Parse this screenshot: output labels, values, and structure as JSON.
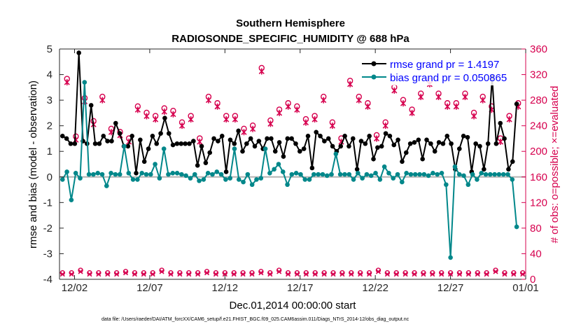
{
  "chart_data": {
    "type": "line",
    "title": "Southern Hemisphere",
    "subtitle": "RADIOSONDE_SPECIFIC_HUMIDITY @ 688 hPa",
    "xlabel": "Dec.01,2014 00:00:00 start",
    "ylabel_left": "rmse and bias (model - observation)",
    "ylabel_right": "# of obs: o=possible; ×=evaluated",
    "x_tick_labels": [
      "12/02",
      "12/07",
      "12/12",
      "12/17",
      "12/22",
      "12/27",
      "01/01"
    ],
    "x_tick_days": [
      1,
      6,
      11,
      16,
      21,
      26,
      31
    ],
    "xlim_days": [
      0,
      31
    ],
    "ylim_left": [
      -4,
      5
    ],
    "y_ticks_left": [
      "-4",
      "-3",
      "-2",
      "-1",
      "0",
      "1",
      "2",
      "3",
      "4",
      "5"
    ],
    "ylim_right": [
      0,
      360
    ],
    "y_ticks_right": [
      "0",
      "40",
      "80",
      "120",
      "160",
      "200",
      "240",
      "280",
      "320",
      "360"
    ],
    "colors": {
      "rmse": "#000000",
      "bias": "#00878a",
      "obs": "#d6004e",
      "zero": "#b4b4b4"
    },
    "legend": [
      {
        "name": "rmse grand pr = 1.4197",
        "color": "#000000"
      },
      {
        "name": "bias grand pr = 0.050865",
        "color": "#00878a"
      }
    ],
    "rmse": [
      1.6,
      1.5,
      1.3,
      1.3,
      4.85,
      1.4,
      1.3,
      2.8,
      1.3,
      1.3,
      1.6,
      1.4,
      1.4,
      2.1,
      1.7,
      1.2,
      1.2,
      1.6,
      0.15,
      1.45,
      0.6,
      1.1,
      1.6,
      1.3,
      1.7,
      2.3,
      1.7,
      1.25,
      1.3,
      1.3,
      1.3,
      1.3,
      1.4,
      0.45,
      1.2,
      0.55,
      0.95,
      1.5,
      1.4,
      1.6,
      0.2,
      1.45,
      1.3,
      1.8,
      1.0,
      1.3,
      1.5,
      1.2,
      1.4,
      1.1,
      1.5,
      1.5,
      1.0,
      1.35,
      0.8,
      1.5,
      1.5,
      1.3,
      1.0,
      1.1,
      1.6,
      0.35,
      1.75,
      1.6,
      1.4,
      1.5,
      1.2,
      1.0,
      1.2,
      1.6,
      1.2,
      1.5,
      0.3,
      1.4,
      1.3,
      1.6,
      0.7,
      1.15,
      1.2,
      1.7,
      1.6,
      1.25,
      1.45,
      0.6,
      0.95,
      1.3,
      1.35,
      1.45,
      0.7,
      1.45,
      1.3,
      1.0,
      1.35,
      1.3,
      1.6,
      1.3,
      0.3,
      1.1,
      1.6,
      1.55,
      0.2,
      1.3,
      1.2,
      0.3,
      1.3,
      3.9,
      1.3,
      2.1,
      1.5,
      0.3,
      0.6,
      2.85
    ],
    "bias": [
      -0.1,
      0.2,
      -0.9,
      0.15,
      -0.05,
      3.7,
      0.1,
      0.1,
      0.15,
      0.1,
      -0.35,
      0.15,
      0.1,
      0.1,
      1.2,
      0.15,
      -0.1,
      -0.1,
      0.15,
      0.1,
      0.1,
      0.5,
      -0.05,
      1.1,
      0.1,
      0.15,
      0.15,
      0.1,
      0.05,
      -0.05,
      0.1,
      -0.15,
      -0.1,
      0.15,
      0.1,
      0.2,
      0.1,
      -0.1,
      -0.05,
      1.1,
      -0.1,
      -0.2,
      0.1,
      -0.3,
      -0.1,
      -0.05,
      1.1,
      0.15,
      0.3,
      0.5,
      0.2,
      -0.3,
      0.1,
      0.15,
      0.1,
      -0.1,
      -0.1,
      0.1,
      0.1,
      0.1,
      0.05,
      0.1,
      0.9,
      0.1,
      0.1,
      0.1,
      -0.1,
      0.15,
      -0.05,
      0.1,
      0.05,
      0.15,
      -0.1,
      0.4,
      0.15,
      -0.05,
      0.1,
      -0.2,
      0.15,
      0.1,
      0.1,
      0.1,
      0.1,
      0.05,
      0.15,
      0.1,
      0.15,
      -0.3,
      -3.15,
      0.4,
      0.1,
      0.05,
      -0.3,
      0.1,
      -0.1,
      0.15,
      0.1,
      0.1,
      0.1,
      0.1,
      0.1,
      0.1,
      -0.1,
      -1.95
    ],
    "obs_x_count": [
      308,
      218,
      278,
      242,
      280,
      230,
      225,
      215,
      265,
      255,
      250,
      262,
      258,
      240,
      250,
      215,
      280,
      270,
      250,
      250,
      230,
      235,
      325,
      243,
      260,
      270,
      265,
      245,
      250,
      280,
      240,
      215,
      305,
      280,
      270,
      220,
      240,
      295,
      275,
      260,
      285,
      305,
      285,
      270,
      270,
      285,
      255,
      280,
      265,
      215,
      250,
      270
    ],
    "obs_o_count": [
      8,
      8,
      12,
      8,
      8,
      8,
      8,
      10,
      8,
      8,
      8,
      12,
      8,
      8,
      8,
      8,
      10,
      8,
      8,
      8,
      8,
      8,
      10,
      8,
      12,
      8,
      8,
      8,
      8,
      8,
      8,
      8,
      8,
      8,
      8,
      12,
      8,
      8,
      8,
      8,
      8,
      8,
      8,
      8,
      8,
      8,
      8,
      8,
      12,
      8,
      8,
      8
    ],
    "footnote": "data file: /Users/raeder/DAI/ATM_forcXX/CAM6_setup/f.e21.FHIST_BGC.f09_025.CAM6assim.011/Diags_NTrS_2014-12/obs_diag_output.nc"
  }
}
